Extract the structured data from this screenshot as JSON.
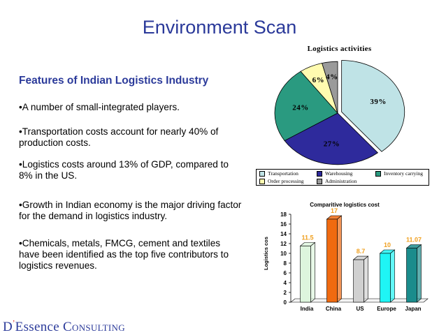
{
  "slide": {
    "title": "Environment Scan",
    "subtitle": "Features of Indian Logistics  Industry",
    "bullets": [
      "•A number of small-integrated players.",
      "•Transportation costs account for nearly 40% of production costs.",
      "•Logistics costs around 13% of GDP, compared to 8% in the US.",
      "•Growth in Indian economy is the major driving factor for the demand in logistics industry.",
      "•Chemicals, metals, FMCG, cement and textiles have been identified as the top five contributors to logistics revenues."
    ]
  },
  "logo": {
    "d": "D",
    "apostrophe": "’",
    "essence": "Essence",
    "c": "C",
    "onsulting": "ONSULTING"
  },
  "chart_data": [
    {
      "type": "pie",
      "title": "Logistics activities",
      "categories": [
        "Transportation",
        "Warehousing",
        "Inventory carrying",
        "Order processing",
        "Administration"
      ],
      "values": [
        39,
        27,
        24,
        6,
        4
      ],
      "labels": [
        "39%",
        "27%",
        "24%",
        "6%",
        "4%"
      ],
      "colors": [
        "#bfe3e6",
        "#2e2a9c",
        "#2a9a80",
        "#fffbb0",
        "#9a9a9a"
      ],
      "legend": "bottom"
    },
    {
      "type": "bar",
      "title": "Comparitive logistics cost",
      "categories": [
        "India",
        "China",
        "US",
        "Europe",
        "Japan"
      ],
      "values": [
        11.5,
        17,
        8.7,
        10,
        11.07
      ],
      "data_labels": [
        "11.5",
        "17",
        "8.7",
        "10",
        "11.07"
      ],
      "colors": [
        "#ddf5dd",
        "#f06a10",
        "#d0d0d0",
        "#1ff5f5",
        "#1a8c8c"
      ],
      "ylabel": "Logistics cos",
      "ylim": [
        0,
        18
      ],
      "yticks": [
        "0",
        "2",
        "4",
        "6",
        "8",
        "10",
        "12",
        "14",
        "16",
        "18"
      ],
      "label_color": "#f0a020"
    }
  ]
}
